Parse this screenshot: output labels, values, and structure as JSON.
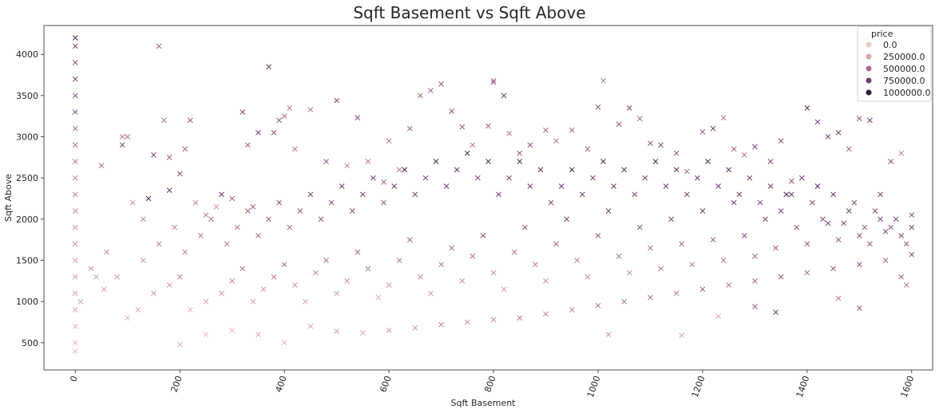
{
  "chart_data": {
    "type": "scatter",
    "title": "Sqft Basement vs Sqft Above",
    "xlabel": "Sqft Basement",
    "ylabel": "Sqft Above",
    "xlim": [
      -60,
      1640
    ],
    "ylim": [
      170,
      4350
    ],
    "x_ticks": [
      0,
      200,
      400,
      600,
      800,
      1000,
      1200,
      1400,
      1600
    ],
    "x_tick_labels": [
      "0",
      "200",
      "400",
      "600",
      "800",
      "1000",
      "1200",
      "1400",
      "1600"
    ],
    "y_ticks": [
      500,
      1000,
      1500,
      2000,
      2500,
      3000,
      3500,
      4000
    ],
    "y_tick_labels": [
      "500",
      "1000",
      "1500",
      "2000",
      "2500",
      "3000",
      "3500",
      "4000"
    ],
    "marker": "x",
    "legend": {
      "title": "price",
      "placement": "top-right",
      "entries": [
        {
          "label": "0.0",
          "color": "#eccbc5"
        },
        {
          "label": "250000.0",
          "color": "#d9a4aa"
        },
        {
          "label": "500000.0",
          "color": "#ae6a91"
        },
        {
          "label": "750000.0",
          "color": "#6e3e6c"
        },
        {
          "label": "1000000.0",
          "color": "#2e1b3c"
        }
      ]
    },
    "color_scale": {
      "min_price": 0,
      "max_price": 1000000,
      "colors": [
        "#f2d6cf",
        "#e0b0b0",
        "#b9789a",
        "#7a4574",
        "#2e1b3c"
      ]
    },
    "points": [
      [
        0,
        4200,
        900000
      ],
      [
        0,
        4100,
        750000
      ],
      [
        0,
        3900,
        700000
      ],
      [
        0,
        3700,
        800000
      ],
      [
        0,
        3500,
        650000
      ],
      [
        0,
        3300,
        700000
      ],
      [
        0,
        3100,
        600000
      ],
      [
        0,
        2900,
        550000
      ],
      [
        0,
        2700,
        500000
      ],
      [
        0,
        2500,
        480000
      ],
      [
        0,
        2300,
        450000
      ],
      [
        0,
        2100,
        420000
      ],
      [
        0,
        1900,
        400000
      ],
      [
        0,
        1700,
        380000
      ],
      [
        0,
        1500,
        350000
      ],
      [
        0,
        1300,
        320000
      ],
      [
        0,
        1100,
        300000
      ],
      [
        0,
        900,
        280000
      ],
      [
        0,
        700,
        250000
      ],
      [
        0,
        500,
        200000
      ],
      [
        0,
        400,
        150000
      ],
      [
        10,
        1000,
        300000
      ],
      [
        30,
        1400,
        350000
      ],
      [
        40,
        1300,
        300000
      ],
      [
        50,
        2650,
        600000
      ],
      [
        55,
        1150,
        300000
      ],
      [
        60,
        1600,
        420000
      ],
      [
        80,
        1300,
        350000
      ],
      [
        90,
        3000,
        500000
      ],
      [
        90,
        2900,
        700000
      ],
      [
        100,
        3000,
        550000
      ],
      [
        110,
        2200,
        400000
      ],
      [
        130,
        2000,
        450000
      ],
      [
        140,
        2250,
        900000
      ],
      [
        150,
        2780,
        750000
      ],
      [
        160,
        4100,
        600000
      ],
      [
        170,
        3200,
        520000
      ],
      [
        180,
        2750,
        600000
      ],
      [
        180,
        2350,
        850000
      ],
      [
        200,
        2550,
        700000
      ],
      [
        210,
        2850,
        600000
      ],
      [
        220,
        3200,
        650000
      ],
      [
        230,
        2200,
        450000
      ],
      [
        250,
        2050,
        520000
      ],
      [
        270,
        2150,
        380000
      ],
      [
        280,
        2300,
        800000
      ],
      [
        300,
        2250,
        600000
      ],
      [
        320,
        3300,
        750000
      ],
      [
        330,
        2900,
        600000
      ],
      [
        340,
        2150,
        600000
      ],
      [
        350,
        3050,
        750000
      ],
      [
        370,
        3850,
        850000
      ],
      [
        380,
        3050,
        700000
      ],
      [
        390,
        3200,
        650000
      ],
      [
        400,
        3250,
        600000
      ],
      [
        410,
        3350,
        500000
      ],
      [
        420,
        2850,
        500000
      ],
      [
        450,
        3330,
        550000
      ],
      [
        480,
        2700,
        650000
      ],
      [
        500,
        3440,
        750000
      ],
      [
        520,
        2650,
        500000
      ],
      [
        540,
        3230,
        700000
      ],
      [
        560,
        2700,
        500000
      ],
      [
        590,
        2450,
        600000
      ],
      [
        600,
        2950,
        550000
      ],
      [
        620,
        2600,
        500000
      ],
      [
        640,
        3100,
        650000
      ],
      [
        660,
        3500,
        600000
      ],
      [
        680,
        3560,
        600000
      ],
      [
        700,
        3640,
        650000
      ],
      [
        720,
        3310,
        700000
      ],
      [
        740,
        3120,
        650000
      ],
      [
        760,
        2900,
        500000
      ],
      [
        790,
        3130,
        600000
      ],
      [
        800,
        3680,
        600000
      ],
      [
        800,
        3660,
        550000
      ],
      [
        820,
        3500,
        800000
      ],
      [
        830,
        3040,
        500000
      ],
      [
        850,
        2800,
        700000
      ],
      [
        870,
        2900,
        700000
      ],
      [
        900,
        3080,
        600000
      ],
      [
        920,
        2950,
        550000
      ],
      [
        950,
        3080,
        600000
      ],
      [
        980,
        2850,
        600000
      ],
      [
        1000,
        3360,
        750000
      ],
      [
        1010,
        3680,
        500000
      ],
      [
        1040,
        3150,
        650000
      ],
      [
        1060,
        3350,
        750000
      ],
      [
        1080,
        3220,
        600000
      ],
      [
        1100,
        2920,
        700000
      ],
      [
        1120,
        2900,
        700000
      ],
      [
        1150,
        2800,
        700000
      ],
      [
        1170,
        2580,
        600000
      ],
      [
        1200,
        3060,
        650000
      ],
      [
        1220,
        3100,
        800000
      ],
      [
        1240,
        3230,
        500000
      ],
      [
        1260,
        2850,
        600000
      ],
      [
        1280,
        2780,
        500000
      ],
      [
        1300,
        2880,
        800000
      ],
      [
        1330,
        2700,
        700000
      ],
      [
        1350,
        2950,
        700000
      ],
      [
        1370,
        2460,
        700000
      ],
      [
        1400,
        3350,
        900000
      ],
      [
        1420,
        3180,
        800000
      ],
      [
        1440,
        3000,
        750000
      ],
      [
        1460,
        3050,
        800000
      ],
      [
        1480,
        2850,
        600000
      ],
      [
        1500,
        3220,
        650000
      ],
      [
        1520,
        3200,
        800000
      ],
      [
        1540,
        2300,
        750000
      ],
      [
        1560,
        2700,
        700000
      ],
      [
        1580,
        2800,
        500000
      ],
      [
        1600,
        2050,
        700000
      ],
      [
        200,
        480,
        250000
      ],
      [
        250,
        600,
        150000
      ],
      [
        300,
        650,
        200000
      ],
      [
        350,
        600,
        300000
      ],
      [
        400,
        500,
        200000
      ],
      [
        450,
        700,
        300000
      ],
      [
        500,
        640,
        350000
      ],
      [
        550,
        620,
        300000
      ],
      [
        600,
        650,
        350000
      ],
      [
        650,
        680,
        400000
      ],
      [
        700,
        720,
        450000
      ],
      [
        750,
        750,
        400000
      ],
      [
        800,
        780,
        450000
      ],
      [
        850,
        800,
        500000
      ],
      [
        900,
        850,
        450000
      ],
      [
        950,
        900,
        500000
      ],
      [
        1000,
        950,
        550000
      ],
      [
        1050,
        1000,
        500000
      ],
      [
        1100,
        1050,
        550000
      ],
      [
        1150,
        1100,
        500000
      ],
      [
        1200,
        1150,
        600000
      ],
      [
        1250,
        1200,
        550000
      ],
      [
        1300,
        1250,
        600000
      ],
      [
        1350,
        1300,
        650000
      ],
      [
        1400,
        1350,
        600000
      ],
      [
        1450,
        1400,
        650000
      ],
      [
        1500,
        1450,
        700000
      ],
      [
        1550,
        1500,
        650000
      ],
      [
        1600,
        1570,
        700000
      ],
      [
        1020,
        600,
        400000
      ],
      [
        1160,
        590,
        300000
      ],
      [
        1340,
        870,
        800000
      ],
      [
        1300,
        940,
        700000
      ],
      [
        1460,
        1040,
        500000
      ],
      [
        1500,
        920,
        650000
      ],
      [
        1230,
        820,
        300000
      ],
      [
        1580,
        1300,
        600000
      ],
      [
        1590,
        1200,
        550000
      ],
      [
        100,
        800,
        200000
      ],
      [
        120,
        900,
        300000
      ],
      [
        150,
        1100,
        350000
      ],
      [
        180,
        1200,
        400000
      ],
      [
        200,
        1300,
        450000
      ],
      [
        220,
        900,
        250000
      ],
      [
        250,
        1000,
        300000
      ],
      [
        280,
        1100,
        350000
      ],
      [
        300,
        1250,
        400000
      ],
      [
        320,
        1400,
        500000
      ],
      [
        340,
        1000,
        300000
      ],
      [
        360,
        1150,
        350000
      ],
      [
        380,
        1300,
        500000
      ],
      [
        400,
        1450,
        550000
      ],
      [
        420,
        1200,
        400000
      ],
      [
        440,
        1000,
        300000
      ],
      [
        460,
        1350,
        450000
      ],
      [
        480,
        1500,
        550000
      ],
      [
        500,
        1100,
        350000
      ],
      [
        520,
        1250,
        400000
      ],
      [
        540,
        1600,
        600000
      ],
      [
        560,
        1400,
        500000
      ],
      [
        580,
        1050,
        300000
      ],
      [
        600,
        1200,
        400000
      ],
      [
        620,
        1500,
        550000
      ],
      [
        640,
        1750,
        650000
      ],
      [
        660,
        1300,
        450000
      ],
      [
        680,
        1100,
        350000
      ],
      [
        700,
        1450,
        500000
      ],
      [
        720,
        1650,
        600000
      ],
      [
        740,
        1250,
        400000
      ],
      [
        760,
        1550,
        550000
      ],
      [
        780,
        1800,
        700000
      ],
      [
        800,
        1350,
        450000
      ],
      [
        820,
        1150,
        350000
      ],
      [
        840,
        1600,
        550000
      ],
      [
        860,
        1900,
        700000
      ],
      [
        880,
        1450,
        500000
      ],
      [
        900,
        1250,
        400000
      ],
      [
        920,
        1700,
        600000
      ],
      [
        940,
        2000,
        750000
      ],
      [
        960,
        1500,
        500000
      ],
      [
        980,
        1300,
        450000
      ],
      [
        1000,
        1800,
        650000
      ],
      [
        1020,
        2100,
        800000
      ],
      [
        1040,
        1550,
        550000
      ],
      [
        1060,
        1350,
        450000
      ],
      [
        1080,
        1900,
        700000
      ],
      [
        1100,
        1650,
        600000
      ],
      [
        1120,
        1400,
        500000
      ],
      [
        1140,
        2000,
        750000
      ],
      [
        1160,
        1700,
        600000
      ],
      [
        1180,
        1450,
        500000
      ],
      [
        1200,
        2100,
        800000
      ],
      [
        1220,
        1750,
        650000
      ],
      [
        1240,
        1500,
        550000
      ],
      [
        1260,
        2200,
        850000
      ],
      [
        1280,
        1800,
        700000
      ],
      [
        1300,
        1550,
        600000
      ],
      [
        1320,
        2000,
        750000
      ],
      [
        1340,
        1650,
        650000
      ],
      [
        1360,
        2300,
        900000
      ],
      [
        1380,
        1900,
        700000
      ],
      [
        1400,
        1700,
        650000
      ],
      [
        1420,
        2400,
        900000
      ],
      [
        1440,
        1950,
        750000
      ],
      [
        1460,
        1750,
        700000
      ],
      [
        1480,
        2100,
        800000
      ],
      [
        1500,
        1800,
        700000
      ],
      [
        1520,
        1700,
        650000
      ],
      [
        1540,
        2000,
        750000
      ],
      [
        1560,
        1900,
        750000
      ],
      [
        1580,
        1800,
        700000
      ],
      [
        1600,
        1900,
        750000
      ],
      [
        130,
        1500,
        400000
      ],
      [
        160,
        1700,
        450000
      ],
      [
        190,
        1900,
        500000
      ],
      [
        210,
        1600,
        450000
      ],
      [
        240,
        1800,
        500000
      ],
      [
        260,
        2000,
        550000
      ],
      [
        290,
        1700,
        500000
      ],
      [
        310,
        1900,
        550000
      ],
      [
        330,
        2100,
        650000
      ],
      [
        350,
        1800,
        550000
      ],
      [
        370,
        2000,
        600000
      ],
      [
        390,
        2200,
        700000
      ],
      [
        410,
        1900,
        600000
      ],
      [
        430,
        2100,
        650000
      ],
      [
        450,
        2300,
        750000
      ],
      [
        470,
        2000,
        650000
      ],
      [
        490,
        2200,
        700000
      ],
      [
        510,
        2400,
        800000
      ],
      [
        530,
        2100,
        700000
      ],
      [
        550,
        2300,
        750000
      ],
      [
        570,
        2500,
        850000
      ],
      [
        590,
        2200,
        700000
      ],
      [
        610,
        2400,
        800000
      ],
      [
        630,
        2600,
        900000
      ],
      [
        650,
        2300,
        750000
      ],
      [
        670,
        2500,
        800000
      ],
      [
        690,
        2700,
        900000
      ],
      [
        710,
        2400,
        800000
      ],
      [
        730,
        2600,
        850000
      ],
      [
        750,
        2800,
        950000
      ],
      [
        770,
        2500,
        800000
      ],
      [
        790,
        2700,
        900000
      ],
      [
        810,
        2300,
        750000
      ],
      [
        830,
        2500,
        800000
      ],
      [
        850,
        2700,
        900000
      ],
      [
        870,
        2400,
        800000
      ],
      [
        890,
        2600,
        850000
      ],
      [
        910,
        2200,
        750000
      ],
      [
        930,
        2400,
        800000
      ],
      [
        950,
        2600,
        900000
      ],
      [
        970,
        2300,
        750000
      ],
      [
        990,
        2500,
        850000
      ],
      [
        1010,
        2700,
        900000
      ],
      [
        1030,
        2400,
        800000
      ],
      [
        1050,
        2600,
        850000
      ],
      [
        1070,
        2300,
        750000
      ],
      [
        1090,
        2500,
        850000
      ],
      [
        1110,
        2700,
        900000
      ],
      [
        1130,
        2400,
        800000
      ],
      [
        1150,
        2600,
        850000
      ],
      [
        1170,
        2300,
        750000
      ],
      [
        1190,
        2500,
        850000
      ],
      [
        1210,
        2700,
        900000
      ],
      [
        1230,
        2400,
        800000
      ],
      [
        1250,
        2600,
        850000
      ],
      [
        1270,
        2300,
        750000
      ],
      [
        1290,
        2500,
        850000
      ],
      [
        1310,
        2200,
        750000
      ],
      [
        1330,
        2400,
        800000
      ],
      [
        1350,
        2100,
        750000
      ],
      [
        1370,
        2300,
        800000
      ],
      [
        1390,
        2500,
        850000
      ],
      [
        1410,
        2200,
        750000
      ],
      [
        1430,
        2000,
        700000
      ],
      [
        1450,
        2300,
        800000
      ],
      [
        1470,
        1950,
        700000
      ],
      [
        1490,
        2200,
        750000
      ],
      [
        1510,
        1900,
        700000
      ],
      [
        1530,
        2100,
        750000
      ],
      [
        1550,
        1850,
        700000
      ],
      [
        1570,
        2000,
        750000
      ],
      [
        1590,
        1700,
        650000
      ]
    ]
  }
}
